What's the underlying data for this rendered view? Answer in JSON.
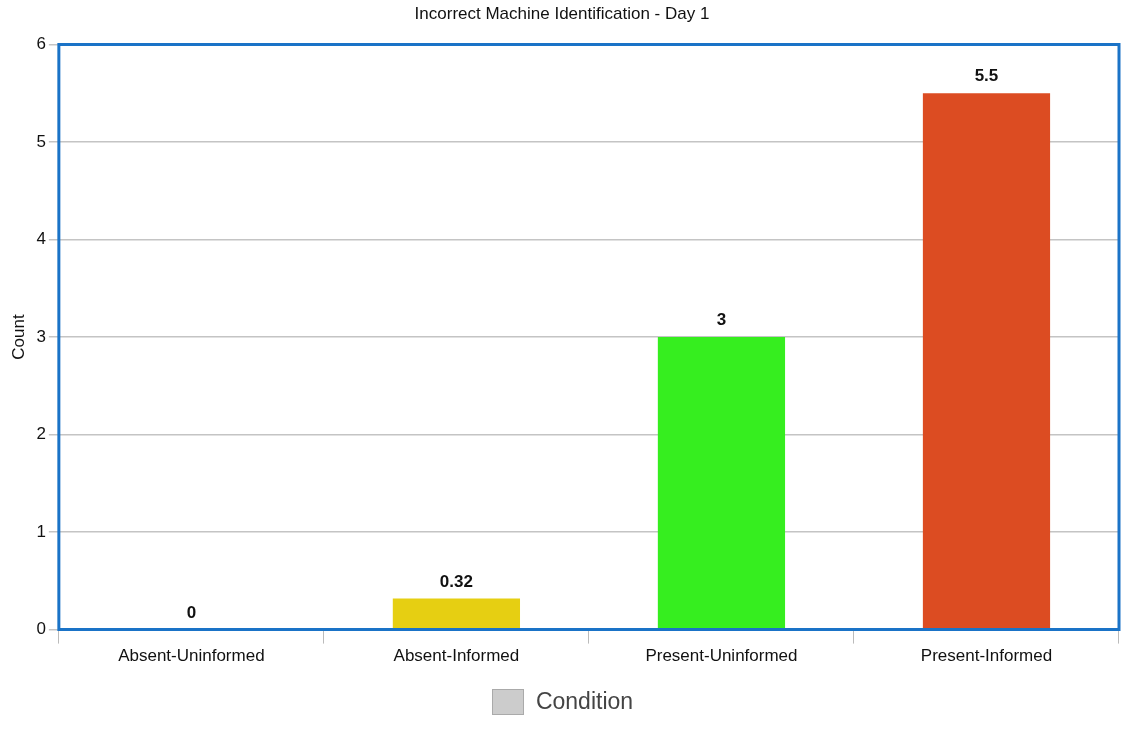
{
  "chart_data": {
    "type": "bar",
    "title": "Incorrect Machine Identification - Day 1",
    "ylabel": "Count",
    "categories": [
      "Absent-Uninformed",
      "Absent-Informed",
      "Present-Uninformed",
      "Present-Informed"
    ],
    "series": [
      {
        "name": "Condition",
        "color": "#cccccc",
        "colors": [
          "#1f77b4",
          "#e6cf12",
          "#36ee1f",
          "#dc4c22"
        ],
        "values": [
          0,
          0.32,
          3,
          5.5
        ]
      }
    ],
    "ylim": [
      0,
      6
    ],
    "yticks": [
      0,
      1,
      2,
      3,
      4,
      5,
      6
    ],
    "grid": "y",
    "legend": "bottom",
    "data_labels": true
  }
}
